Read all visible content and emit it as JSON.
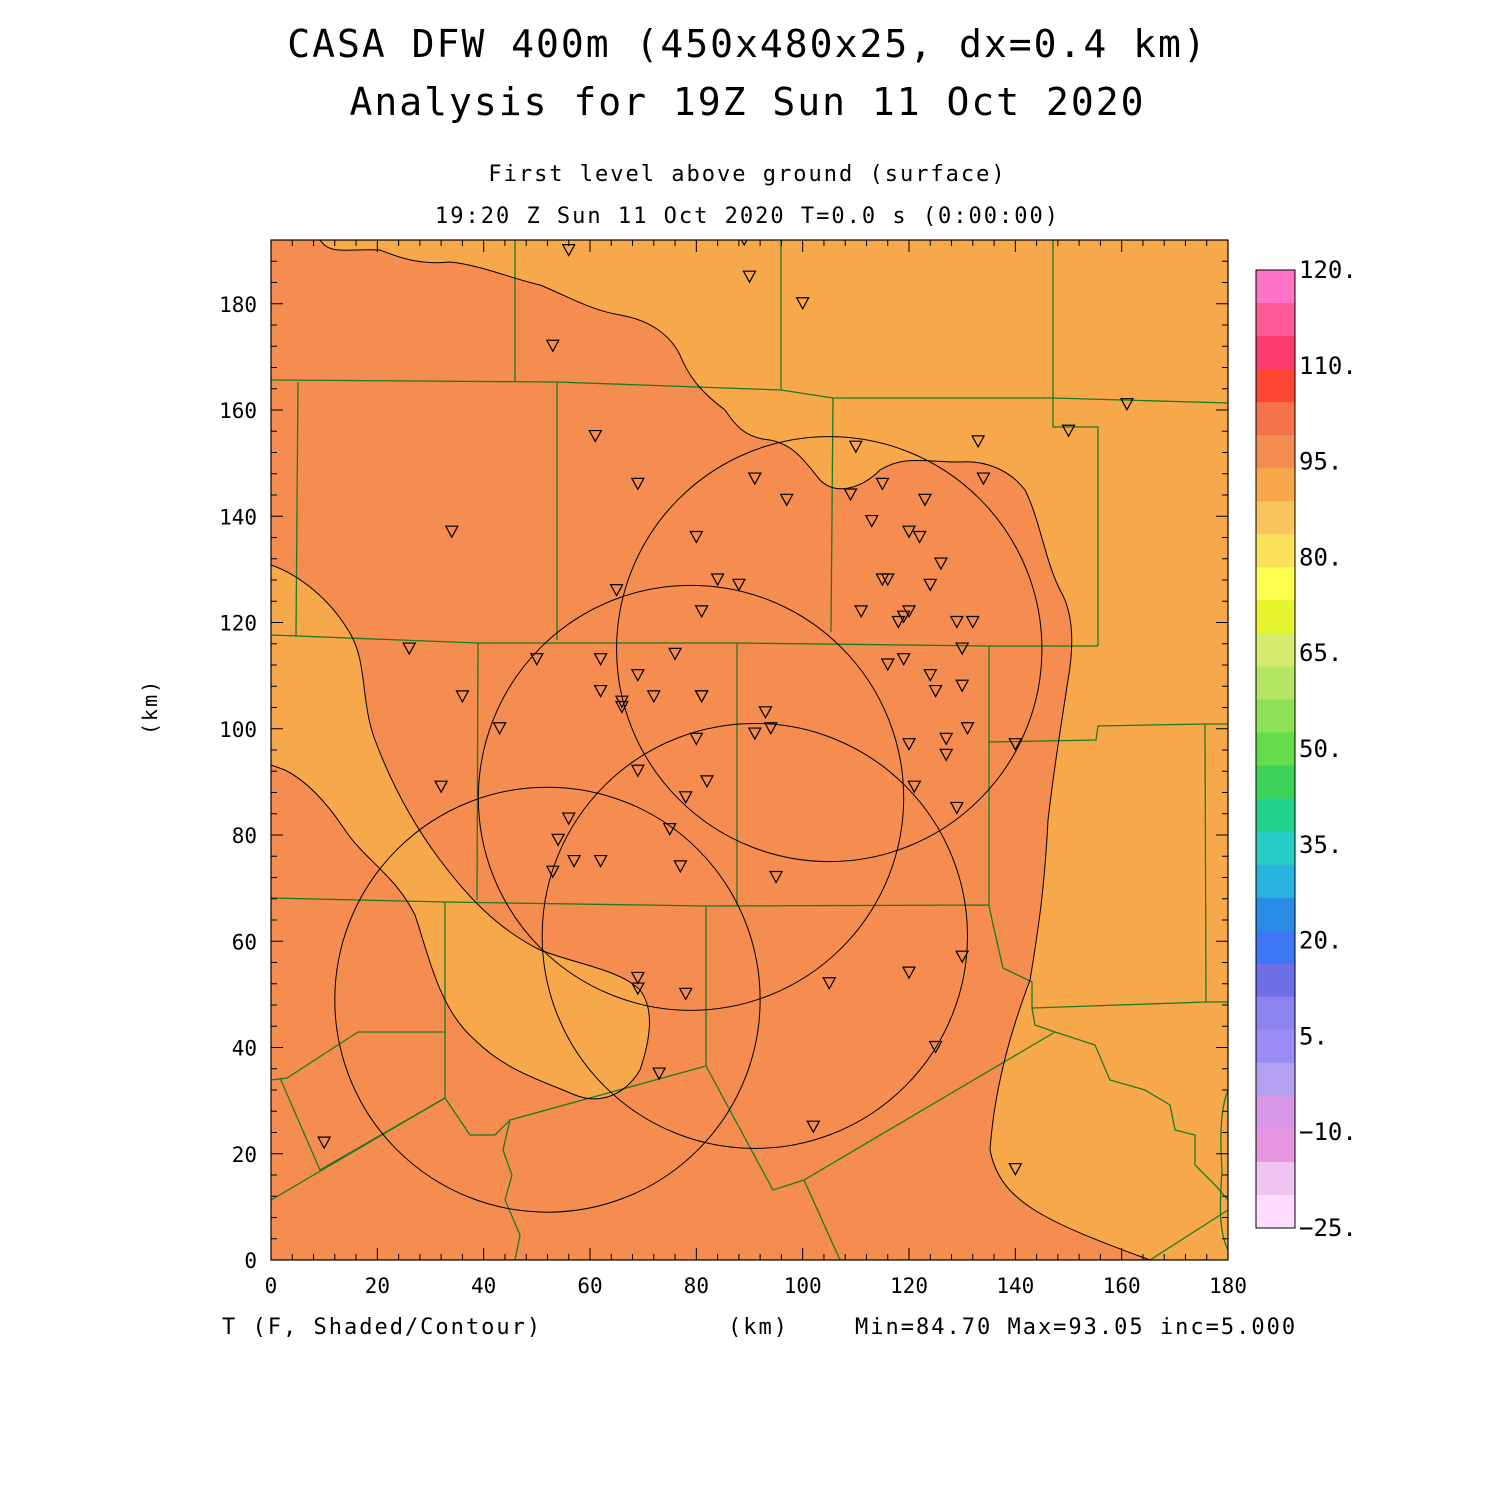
{
  "title": {
    "line1": "CASA DFW 400m (450x480x25, dx=0.4 km)",
    "line2": "Analysis for 19Z Sun 11 Oct 2020"
  },
  "subtitle": {
    "level": "First level above ground (surface)",
    "time": "19:20 Z Sun 11 Oct 2020   T=0.0 s (0:00:00)"
  },
  "footer": {
    "variable": "T (F, Shaded/Contour)",
    "xunit": "(km)",
    "stats": "Min=84.70 Max=93.05 inc=5.000"
  },
  "axes": {
    "ylabel": "(km)",
    "x_ticks": [
      "0",
      "20",
      "40",
      "60",
      "80",
      "100",
      "120",
      "140",
      "160",
      "180"
    ],
    "y_ticks": [
      "0",
      "20",
      "40",
      "60",
      "80",
      "100",
      "120",
      "140",
      "160",
      "180"
    ],
    "x_range": [
      0,
      180
    ],
    "y_range": [
      0,
      192
    ]
  },
  "colorbar": {
    "labels": [
      "120.",
      "110.",
      "95.",
      "80.",
      "65.",
      "50.",
      "35.",
      "20.",
      "5.",
      "−10.",
      "−25."
    ],
    "colors": [
      "#ff73c8",
      "#ff5a96",
      "#ff3c6e",
      "#ff4632",
      "#f5734b",
      "#f58c50",
      "#f7a84b",
      "#f8c55a",
      "#fbe05a",
      "#ffff50",
      "#e6f52d",
      "#d6eb6e",
      "#b4e664",
      "#8ce155",
      "#64dc4b",
      "#3cd25a",
      "#23d28c",
      "#28cdc8",
      "#28b4dc",
      "#288ce6",
      "#3c78f5",
      "#6e6ee6",
      "#8c82f0",
      "#9b8cf5",
      "#b4a0f0",
      "#d796e6",
      "#e696e1",
      "#f0c3f0",
      "#ffdcff"
    ]
  },
  "map": {
    "colors": {
      "warm": "#f58c50",
      "cooler": "#f7a84b",
      "county_lines": "#1e7a1e"
    },
    "radars": [
      {
        "x": 105,
        "y": 115,
        "r": 40
      },
      {
        "x": 79,
        "y": 87,
        "r": 40
      },
      {
        "x": 52,
        "y": 49,
        "r": 40
      },
      {
        "x": 91,
        "y": 61,
        "r": 40
      }
    ],
    "stations": [
      [
        56,
        190
      ],
      [
        89,
        192
      ],
      [
        90,
        185
      ],
      [
        100,
        180
      ],
      [
        53,
        172
      ],
      [
        61,
        155
      ],
      [
        150,
        156
      ],
      [
        161,
        161
      ],
      [
        110,
        153
      ],
      [
        133,
        154
      ],
      [
        69,
        146
      ],
      [
        91,
        147
      ],
      [
        97,
        143
      ],
      [
        109,
        144
      ],
      [
        115,
        146
      ],
      [
        123,
        143
      ],
      [
        134,
        147
      ],
      [
        34,
        137
      ],
      [
        80,
        136
      ],
      [
        113,
        139
      ],
      [
        120,
        137
      ],
      [
        122,
        136
      ],
      [
        126,
        131
      ],
      [
        65,
        126
      ],
      [
        84,
        128
      ],
      [
        88,
        127
      ],
      [
        115,
        128
      ],
      [
        116,
        128
      ],
      [
        124,
        127
      ],
      [
        81,
        122
      ],
      [
        111,
        122
      ],
      [
        120,
        122
      ],
      [
        119,
        121
      ],
      [
        118,
        120
      ],
      [
        129,
        120
      ],
      [
        132,
        120
      ],
      [
        26,
        115
      ],
      [
        50,
        113
      ],
      [
        62,
        113
      ],
      [
        76,
        114
      ],
      [
        116,
        112
      ],
      [
        119,
        113
      ],
      [
        124,
        110
      ],
      [
        125,
        107
      ],
      [
        130,
        108
      ],
      [
        130,
        115
      ],
      [
        36,
        106
      ],
      [
        62,
        107
      ],
      [
        66,
        105
      ],
      [
        66,
        104
      ],
      [
        69,
        110
      ],
      [
        72,
        106
      ],
      [
        81,
        106
      ],
      [
        81,
        106
      ],
      [
        93,
        103
      ],
      [
        94,
        100
      ],
      [
        43,
        100
      ],
      [
        91,
        99
      ],
      [
        80,
        98
      ],
      [
        120,
        97
      ],
      [
        127,
        98
      ],
      [
        131,
        100
      ],
      [
        140,
        97
      ],
      [
        127,
        95
      ],
      [
        32,
        89
      ],
      [
        69,
        92
      ],
      [
        78,
        87
      ],
      [
        82,
        90
      ],
      [
        121,
        89
      ],
      [
        129,
        85
      ],
      [
        56,
        83
      ],
      [
        54,
        79
      ],
      [
        57,
        75
      ],
      [
        62,
        75
      ],
      [
        75,
        81
      ],
      [
        77,
        74
      ],
      [
        53,
        73
      ],
      [
        95,
        72
      ],
      [
        69,
        53
      ],
      [
        69,
        51
      ],
      [
        78,
        50
      ],
      [
        105,
        52
      ],
      [
        120,
        54
      ],
      [
        130,
        57
      ],
      [
        125,
        40
      ],
      [
        73,
        35
      ],
      [
        102,
        25
      ],
      [
        10,
        22
      ],
      [
        140,
        17
      ]
    ]
  }
}
